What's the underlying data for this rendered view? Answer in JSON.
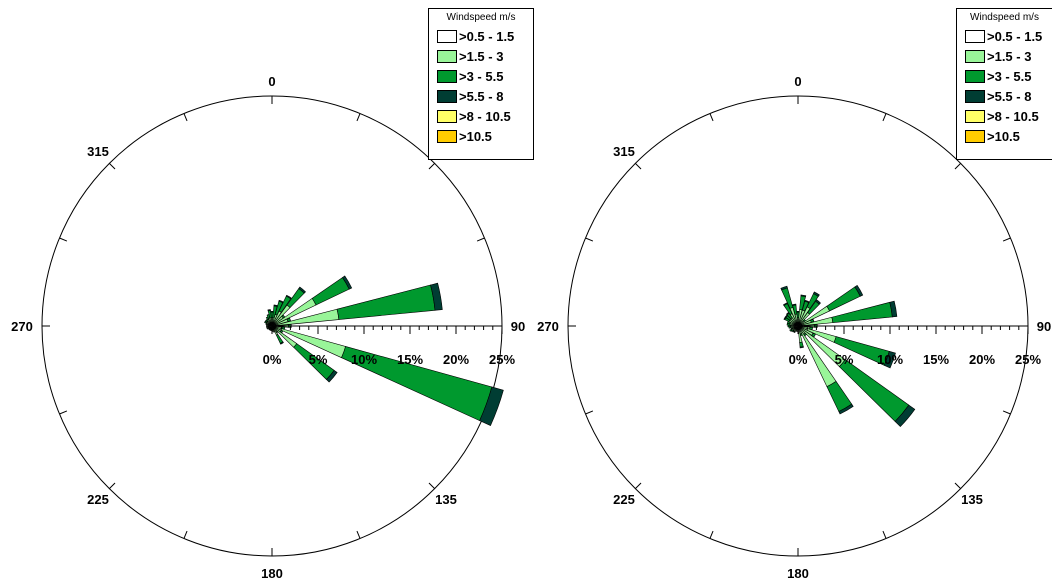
{
  "chart_data": [
    {
      "type": "wind-rose",
      "legend": {
        "title": "Windspeed m/s",
        "placement": "top-right",
        "bins": [
          {
            "label": ">0.5 - 1.5",
            "color": "#ffffff"
          },
          {
            "label": ">1.5 - 3",
            "color": "#99f599"
          },
          {
            "label": ">3 - 5.5",
            "color": "#00992e"
          },
          {
            "label": ">5.5 - 8",
            "color": "#003d33"
          },
          {
            "label": ">8 - 10.5",
            "color": "#ffff66"
          },
          {
            "label": ">10.5",
            "color": "#ffcc00"
          }
        ]
      },
      "direction_labels": [
        "0",
        "45",
        "90",
        "135",
        "180",
        "225",
        "270",
        "315"
      ],
      "radial_axis": {
        "ticks": [
          "0%",
          "5%",
          "10%",
          "15%",
          "20%",
          "25%"
        ],
        "max": 25
      },
      "sectors": [
        {
          "dir": 0,
          "values": [
            0.3,
            0.6,
            0.6,
            0.1,
            0,
            0
          ]
        },
        {
          "dir": 10,
          "values": [
            0.3,
            0.6,
            1.3,
            0.1,
            0,
            0
          ]
        },
        {
          "dir": 20,
          "values": [
            0.3,
            1.0,
            1.5,
            0.1,
            0,
            0
          ]
        },
        {
          "dir": 30,
          "values": [
            0.3,
            1.5,
            1.8,
            0.1,
            0,
            0
          ]
        },
        {
          "dir": 40,
          "values": [
            0.3,
            2.5,
            2.2,
            0.2,
            0,
            0
          ]
        },
        {
          "dir": 50,
          "values": [
            0.3,
            1.2,
            0.2,
            0,
            0,
            0
          ]
        },
        {
          "dir": 60,
          "values": [
            0.3,
            5.0,
            4.0,
            0.3,
            0,
            0
          ]
        },
        {
          "dir": 70,
          "values": [
            0.3,
            1.5,
            0.3,
            0,
            0,
            0
          ]
        },
        {
          "dir": 80,
          "values": [
            0.3,
            7.0,
            10.5,
            0.8,
            0,
            0
          ]
        },
        {
          "dir": 90,
          "values": [
            0.3,
            1.5,
            0.3,
            0,
            0,
            0
          ]
        },
        {
          "dir": 100,
          "values": [
            0.3,
            0.8,
            0.3,
            0,
            0,
            0
          ]
        },
        {
          "dir": 110,
          "values": [
            0.3,
            8.0,
            16.5,
            1.3,
            0,
            0
          ]
        },
        {
          "dir": 120,
          "values": [
            0.3,
            0.8,
            0.2,
            0,
            0,
            0
          ]
        },
        {
          "dir": 130,
          "values": [
            0.3,
            3.0,
            5.0,
            0.4,
            0,
            0
          ]
        },
        {
          "dir": 140,
          "values": [
            0.3,
            0.5,
            0.1,
            0,
            0,
            0
          ]
        },
        {
          "dir": 150,
          "values": [
            0.3,
            0.8,
            1.0,
            0.1,
            0,
            0
          ]
        },
        {
          "dir": 160,
          "values": [
            0.3,
            0.4,
            0,
            0,
            0,
            0
          ]
        },
        {
          "dir": 170,
          "values": [
            0.3,
            0.3,
            0,
            0,
            0,
            0
          ]
        },
        {
          "dir": 180,
          "values": [
            0.3,
            0.2,
            0,
            0,
            0,
            0
          ]
        },
        {
          "dir": 190,
          "values": [
            0.3,
            0.2,
            0,
            0,
            0,
            0
          ]
        },
        {
          "dir": 200,
          "values": [
            0.3,
            0.2,
            0,
            0,
            0,
            0
          ]
        },
        {
          "dir": 210,
          "values": [
            0.3,
            0.2,
            0,
            0,
            0,
            0
          ]
        },
        {
          "dir": 220,
          "values": [
            0.3,
            0.2,
            0,
            0,
            0,
            0
          ]
        },
        {
          "dir": 230,
          "values": [
            0.3,
            0.2,
            0,
            0,
            0,
            0
          ]
        },
        {
          "dir": 240,
          "values": [
            0.3,
            0.3,
            0,
            0,
            0,
            0
          ]
        },
        {
          "dir": 250,
          "values": [
            0.3,
            0.3,
            0,
            0,
            0,
            0
          ]
        },
        {
          "dir": 260,
          "values": [
            0.3,
            0.3,
            0,
            0,
            0,
            0
          ]
        },
        {
          "dir": 270,
          "values": [
            0.3,
            0.3,
            0,
            0,
            0,
            0
          ]
        },
        {
          "dir": 280,
          "values": [
            0.3,
            0.3,
            0,
            0,
            0,
            0
          ]
        },
        {
          "dir": 290,
          "values": [
            0.3,
            0.3,
            0.1,
            0,
            0,
            0
          ]
        },
        {
          "dir": 300,
          "values": [
            0.3,
            0.4,
            0.2,
            0,
            0,
            0
          ]
        },
        {
          "dir": 310,
          "values": [
            0.3,
            0.4,
            0.2,
            0,
            0,
            0
          ]
        },
        {
          "dir": 320,
          "values": [
            0.3,
            0.4,
            0.2,
            0,
            0,
            0
          ]
        },
        {
          "dir": 330,
          "values": [
            0.3,
            0.5,
            0.3,
            0,
            0,
            0
          ]
        },
        {
          "dir": 340,
          "values": [
            0.3,
            0.6,
            0.4,
            0,
            0,
            0
          ]
        },
        {
          "dir": 350,
          "values": [
            0.3,
            0.6,
            0.8,
            0.1,
            0,
            0
          ]
        }
      ]
    },
    {
      "type": "wind-rose",
      "legend": {
        "title": "Windspeed m/s",
        "placement": "top-right",
        "bins": [
          {
            "label": ">0.5 - 1.5",
            "color": "#ffffff"
          },
          {
            "label": ">1.5 - 3",
            "color": "#99f599"
          },
          {
            "label": ">3 - 5.5",
            "color": "#00992e"
          },
          {
            "label": ">5.5 - 8",
            "color": "#003d33"
          },
          {
            "label": ">8 - 10.5",
            "color": "#ffff66"
          },
          {
            "label": ">10.5",
            "color": "#ffcc00"
          }
        ]
      },
      "direction_labels": [
        "0",
        "45",
        "90",
        "135",
        "180",
        "225",
        "270",
        "315"
      ],
      "radial_axis": {
        "ticks": [
          "0%",
          "5%",
          "10%",
          "15%",
          "20%",
          "25%"
        ],
        "max": 25
      },
      "sectors": [
        {
          "dir": 0,
          "values": [
            0.3,
            0.6,
            0.6,
            0.1,
            0,
            0
          ]
        },
        {
          "dir": 10,
          "values": [
            0.3,
            1.5,
            1.5,
            0.1,
            0,
            0
          ]
        },
        {
          "dir": 20,
          "values": [
            0.3,
            1.5,
            1.0,
            0.1,
            0,
            0
          ]
        },
        {
          "dir": 30,
          "values": [
            0.3,
            2.0,
            1.6,
            0.2,
            0,
            0
          ]
        },
        {
          "dir": 40,
          "values": [
            0.3,
            1.5,
            1.5,
            0.2,
            0,
            0
          ]
        },
        {
          "dir": 50,
          "values": [
            0.3,
            0.5,
            0.2,
            0,
            0,
            0
          ]
        },
        {
          "dir": 60,
          "values": [
            0.3,
            3.5,
            3.7,
            0.3,
            0,
            0
          ]
        },
        {
          "dir": 70,
          "values": [
            0.3,
            1.2,
            0.3,
            0,
            0,
            0
          ]
        },
        {
          "dir": 80,
          "values": [
            0.3,
            3.5,
            6.5,
            0.5,
            0,
            0
          ]
        },
        {
          "dir": 90,
          "values": [
            0.3,
            1.5,
            0.3,
            0,
            0,
            0
          ]
        },
        {
          "dir": 100,
          "values": [
            0.3,
            1.0,
            0.3,
            0,
            0,
            0
          ]
        },
        {
          "dir": 110,
          "values": [
            0.3,
            4.0,
            6.0,
            0.7,
            0,
            0
          ]
        },
        {
          "dir": 120,
          "values": [
            0.3,
            1.5,
            0.3,
            0,
            0,
            0
          ]
        },
        {
          "dir": 130,
          "values": [
            0.3,
            6.0,
            8.5,
            0.8,
            0,
            0
          ]
        },
        {
          "dir": 140,
          "values": [
            0.3,
            0.8,
            0.2,
            0,
            0,
            0
          ]
        },
        {
          "dir": 150,
          "values": [
            0.3,
            7.0,
            3.0,
            0.3,
            0,
            0
          ]
        },
        {
          "dir": 160,
          "values": [
            0.3,
            0.6,
            0.2,
            0,
            0,
            0
          ]
        },
        {
          "dir": 170,
          "values": [
            0.3,
            1.5,
            0.5,
            0.1,
            0,
            0
          ]
        },
        {
          "dir": 180,
          "values": [
            0.3,
            0.3,
            0,
            0,
            0,
            0
          ]
        },
        {
          "dir": 190,
          "values": [
            0.3,
            0.3,
            0,
            0,
            0,
            0
          ]
        },
        {
          "dir": 200,
          "values": [
            0.3,
            0.3,
            0,
            0,
            0,
            0
          ]
        },
        {
          "dir": 210,
          "values": [
            0.3,
            0.4,
            0.1,
            0,
            0,
            0
          ]
        },
        {
          "dir": 220,
          "values": [
            0.3,
            0.4,
            0.1,
            0,
            0,
            0
          ]
        },
        {
          "dir": 230,
          "values": [
            0.3,
            0.4,
            0.2,
            0,
            0,
            0
          ]
        },
        {
          "dir": 240,
          "values": [
            0.3,
            0.5,
            0.2,
            0,
            0,
            0
          ]
        },
        {
          "dir": 250,
          "values": [
            0.3,
            0.4,
            0.1,
            0,
            0,
            0
          ]
        },
        {
          "dir": 260,
          "values": [
            0.3,
            0.5,
            0.2,
            0,
            0,
            0
          ]
        },
        {
          "dir": 270,
          "values": [
            0.3,
            0.5,
            0.3,
            0,
            0,
            0
          ]
        },
        {
          "dir": 280,
          "values": [
            0.3,
            0.6,
            0.3,
            0,
            0,
            0
          ]
        },
        {
          "dir": 290,
          "values": [
            0.3,
            0.6,
            0.3,
            0,
            0,
            0
          ]
        },
        {
          "dir": 300,
          "values": [
            0.3,
            0.8,
            0.5,
            0.1,
            0,
            0
          ]
        },
        {
          "dir": 310,
          "values": [
            0.3,
            0.8,
            0.5,
            0.1,
            0,
            0
          ]
        },
        {
          "dir": 320,
          "values": [
            0.3,
            0.8,
            0.6,
            0.1,
            0,
            0
          ]
        },
        {
          "dir": 330,
          "values": [
            0.3,
            1.2,
            1.2,
            0.1,
            0,
            0
          ]
        },
        {
          "dir": 340,
          "values": [
            0.3,
            1.8,
            2.2,
            0.2,
            0,
            0
          ]
        },
        {
          "dir": 350,
          "values": [
            0.3,
            1.0,
            1.0,
            0.1,
            0,
            0
          ]
        }
      ]
    }
  ]
}
